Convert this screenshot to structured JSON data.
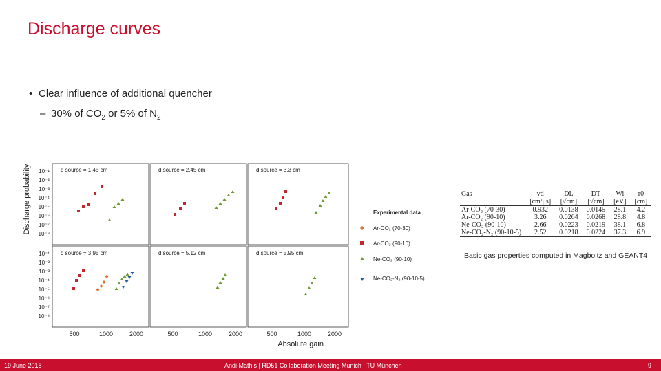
{
  "slide": {
    "title": "Discharge curves",
    "bullet1": "Clear influence of additional quencher",
    "bullet2_pre": "30% of CO",
    "bullet2_sub1": "2",
    "bullet2_mid": " or 5% of N",
    "bullet2_sub2": "2",
    "caption": "Basic gas properties computed in Magboltz and GEANT4"
  },
  "figure": {
    "ylabel": "Discharge probability",
    "xlabel": "Absolute gain",
    "ytick_labels": [
      "10⁻¹",
      "10⁻²",
      "10⁻³",
      "10⁻⁴",
      "10⁻⁵",
      "10⁻⁶",
      "10⁻⁷",
      "10⁻⁸"
    ],
    "xtick_labels": [
      "500",
      "1000",
      "2000"
    ],
    "panel_labels": [
      "d source = 1.45 cm",
      "d source = 2.45 cm",
      "d source = 3.3 cm",
      "d source = 3.95 cm",
      "d source = 5.12 cm",
      "d source = 5.95 cm"
    ],
    "legend_title": "Experimental data",
    "legend": [
      {
        "label": "Ar-CO₂ (70-30)",
        "color": "#e07030",
        "marker": "diamond"
      },
      {
        "label": "Ar-CO₂ (90-10)",
        "color": "#c0282c",
        "marker": "square"
      },
      {
        "label": "Ne-CO₂ (90-10)",
        "color": "#6a9a32",
        "marker": "triangle"
      },
      {
        "label": "Ne-CO₂-N₂ (90-10-5)",
        "color": "#2a5aa0",
        "marker": "triangle-down"
      }
    ]
  },
  "gas_table": {
    "header1": [
      "Gas",
      "vd",
      "DL",
      "DT",
      "Wi",
      "r0"
    ],
    "header2": [
      "",
      "[cm/μs]",
      "[√cm]",
      "[√cm]",
      "[eV]",
      "[cm]"
    ],
    "rows": [
      [
        "Ar-CO₂ (70-30)",
        "0.932",
        "0.0138",
        "0.0145",
        "28.1",
        "4.2"
      ],
      [
        "Ar-CO₂ (90-10)",
        "3.26",
        "0.0264",
        "0.0268",
        "28.8",
        "4.8"
      ],
      [
        "Ne-CO₂ (90-10)",
        "2.66",
        "0.0223",
        "0.0219",
        "38.1",
        "6.8"
      ],
      [
        "Ne-CO₂-N₂ (90-10-5)",
        "2.52",
        "0.0218",
        "0.0224",
        "37.3",
        "6.9"
      ]
    ]
  },
  "footer": {
    "date": "19 June 2018",
    "center": "Andi Mathis | RD51 Collaboration Meeting Munich | TU München",
    "page": "9"
  }
}
